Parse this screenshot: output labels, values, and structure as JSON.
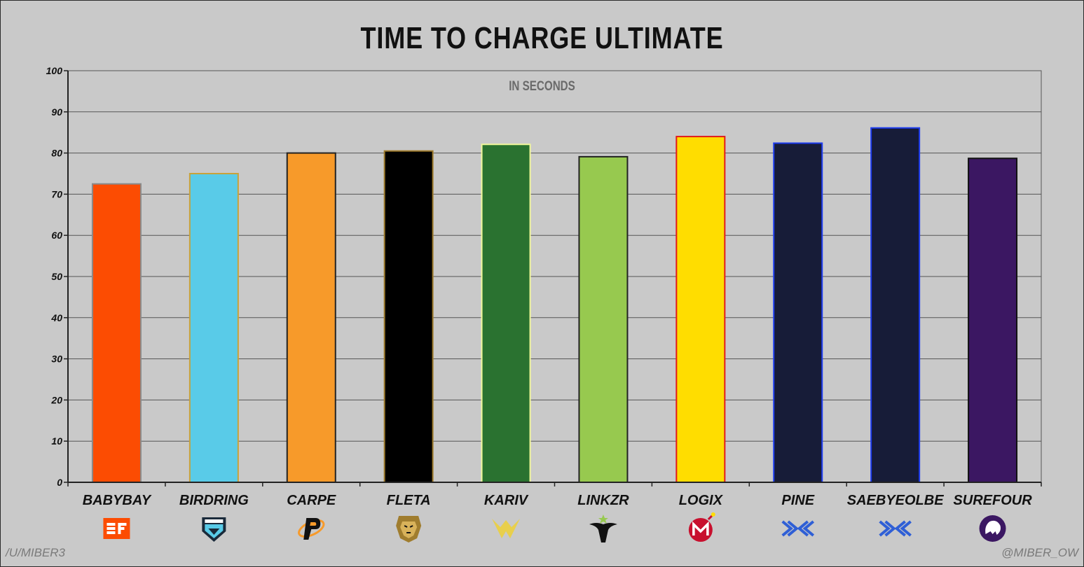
{
  "chart_data": {
    "type": "bar",
    "title": "TIME TO CHARGE ULTIMATE",
    "subtitle": "IN SECONDS",
    "categories": [
      "BABYBAY",
      "BIRDRING",
      "CARPE",
      "FLETA",
      "KARIV",
      "LINKZR",
      "LOGIX",
      "PINE",
      "SAEBYEOLBE",
      "SUREFOUR"
    ],
    "values": [
      72.5,
      75.0,
      80.0,
      80.5,
      82.1,
      79.1,
      84.0,
      82.4,
      86.1,
      78.7
    ],
    "ylim": [
      0,
      100
    ],
    "yticks": [
      0,
      10,
      20,
      30,
      40,
      50,
      60,
      70,
      80,
      90,
      100
    ],
    "grid": true,
    "bar_fill_colors": [
      "#fc4c02",
      "#59cbe8",
      "#f79a2a",
      "#000000",
      "#2a7230",
      "#97c94f",
      "#ffdd00",
      "#171c38",
      "#171c38",
      "#3b1762"
    ],
    "bar_edge_colors": [
      "#8a8a8a",
      "#c8a23a",
      "#222222",
      "#a07d2e",
      "#f0f79a",
      "#222222",
      "#e11a1a",
      "#1e3cf0",
      "#1e3cf0",
      "#111111"
    ],
    "team_logo_icons": [
      "shock-logo-icon",
      "spitfire-logo-icon",
      "fusion-logo-icon",
      "dynasty-logo-icon",
      "valiant-logo-icon",
      "outlaws-logo-icon",
      "mayhem-logo-icon",
      "excelsior-logo-icon",
      "excelsior-logo-icon",
      "gladiators-logo-icon"
    ]
  },
  "footer": {
    "left": "/U/MIBER3",
    "right": "@MIBER_OW"
  }
}
